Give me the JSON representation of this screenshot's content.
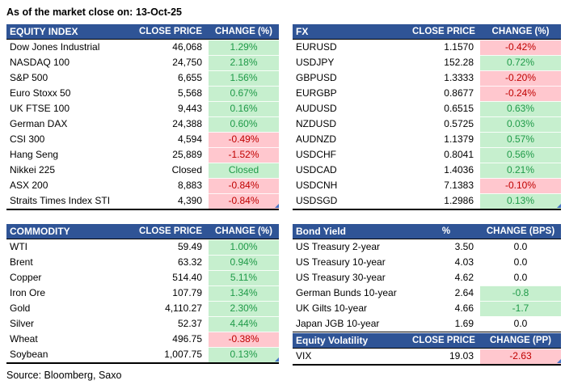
{
  "meta": {
    "as_of_label": "As of the market close on:",
    "date": "13-Oct-25",
    "source": "Source: Bloomberg, Saxo"
  },
  "colors": {
    "header_bg": "#2F5496",
    "header_text": "#FFFFFF",
    "positive_bg": "#C6EFCE",
    "positive_text": "#1F9A48",
    "negative_bg": "#FFC7CE",
    "negative_text": "#C00000",
    "neutral_text": "#000000",
    "resize_handle": "#4472C4"
  },
  "tables": [
    {
      "id": "equity_index",
      "headers": [
        "EQUITY INDEX",
        "CLOSE PRICE",
        "CHANGE (%)"
      ],
      "rows": [
        {
          "name": "Dow Jones Industrial",
          "close": "46,068",
          "change": "1.29%",
          "dir": "pos"
        },
        {
          "name": "NASDAQ 100",
          "close": "24,750",
          "change": "2.18%",
          "dir": "pos"
        },
        {
          "name": "S&P 500",
          "close": "6,655",
          "change": "1.56%",
          "dir": "pos"
        },
        {
          "name": "Euro Stoxx 50",
          "close": "5,568",
          "change": "0.67%",
          "dir": "pos"
        },
        {
          "name": "UK FTSE 100",
          "close": "9,443",
          "change": "0.16%",
          "dir": "pos"
        },
        {
          "name": "German DAX",
          "close": "24,388",
          "change": "0.60%",
          "dir": "pos"
        },
        {
          "name": "CSI 300",
          "close": "4,594",
          "change": "-0.49%",
          "dir": "neg"
        },
        {
          "name": "Hang Seng",
          "close": "25,889",
          "change": "-1.52%",
          "dir": "neg"
        },
        {
          "name": "Nikkei 225",
          "close": "Closed",
          "change": "Closed",
          "dir": "pos"
        },
        {
          "name": "ASX 200",
          "close": "8,883",
          "change": "-0.84%",
          "dir": "neg"
        },
        {
          "name": "Straits Times Index STI",
          "close": "4,390",
          "change": "-0.84%",
          "dir": "neg"
        }
      ]
    },
    {
      "id": "commodity",
      "headers": [
        "COMMODITY",
        "CLOSE PRICE",
        "CHANGE (%)"
      ],
      "rows": [
        {
          "name": "WTI",
          "close": "59.49",
          "change": "1.00%",
          "dir": "pos"
        },
        {
          "name": "Brent",
          "close": "63.32",
          "change": "0.94%",
          "dir": "pos"
        },
        {
          "name": "Copper",
          "close": "514.40",
          "change": "5.11%",
          "dir": "pos"
        },
        {
          "name": "Iron Ore",
          "close": "107.79",
          "change": "1.34%",
          "dir": "pos"
        },
        {
          "name": "Gold",
          "close": "4,110.27",
          "change": "2.30%",
          "dir": "pos"
        },
        {
          "name": "Silver",
          "close": "52.37",
          "change": "4.44%",
          "dir": "pos"
        },
        {
          "name": "Wheat",
          "close": "496.75",
          "change": "-0.38%",
          "dir": "neg"
        },
        {
          "name": "Soybean",
          "close": "1,007.75",
          "change": "0.13%",
          "dir": "pos"
        }
      ]
    },
    {
      "id": "fx",
      "headers": [
        "FX",
        "CLOSE PRICE",
        "CHANGE (%)"
      ],
      "rows": [
        {
          "name": "EURUSD",
          "close": "1.1570",
          "change": "-0.42%",
          "dir": "neg"
        },
        {
          "name": "USDJPY",
          "close": "152.28",
          "change": "0.72%",
          "dir": "pos"
        },
        {
          "name": "GBPUSD",
          "close": "1.3333",
          "change": "-0.20%",
          "dir": "neg"
        },
        {
          "name": "EURGBP",
          "close": "0.8677",
          "change": "-0.24%",
          "dir": "neg"
        },
        {
          "name": "AUDUSD",
          "close": "0.6515",
          "change": "0.63%",
          "dir": "pos"
        },
        {
          "name": "NZDUSD",
          "close": "0.5725",
          "change": "0.03%",
          "dir": "pos"
        },
        {
          "name": "AUDNZD",
          "close": "1.1379",
          "change": "0.57%",
          "dir": "pos"
        },
        {
          "name": "USDCHF",
          "close": "0.8041",
          "change": "0.56%",
          "dir": "pos"
        },
        {
          "name": "USDCAD",
          "close": "1.4036",
          "change": "0.21%",
          "dir": "pos"
        },
        {
          "name": "USDCNH",
          "close": "7.1383",
          "change": "-0.10%",
          "dir": "neg"
        },
        {
          "name": "USDSGD",
          "close": "1.2986",
          "change": "0.13%",
          "dir": "pos"
        }
      ]
    },
    {
      "id": "bond_yield",
      "headers": [
        "Bond Yield",
        "%",
        "CHANGE (BPS)"
      ],
      "rows": [
        {
          "name": "US Treasury 2-year",
          "close": "3.50",
          "change": "0.0",
          "dir": "none"
        },
        {
          "name": "US Treasury 10-year",
          "close": "4.03",
          "change": "0.0",
          "dir": "none"
        },
        {
          "name": "US Treasury 30-year",
          "close": "4.62",
          "change": "0.0",
          "dir": "none"
        },
        {
          "name": "German Bunds 10-year",
          "close": "2.64",
          "change": "-0.8",
          "dir": "pos"
        },
        {
          "name": "UK Gilts 10-year",
          "close": "4.66",
          "change": "-1.7",
          "dir": "pos"
        },
        {
          "name": "Japan JGB 10-year",
          "close": "1.69",
          "change": "0.0",
          "dir": "none"
        }
      ]
    },
    {
      "id": "equity_volatility",
      "headers": [
        "Equity Volatility",
        "CLOSE PRICE",
        "CHANGE (PP)"
      ],
      "rows": [
        {
          "name": "VIX",
          "close": "19.03",
          "change": "-2.63",
          "dir": "neg"
        }
      ]
    }
  ]
}
